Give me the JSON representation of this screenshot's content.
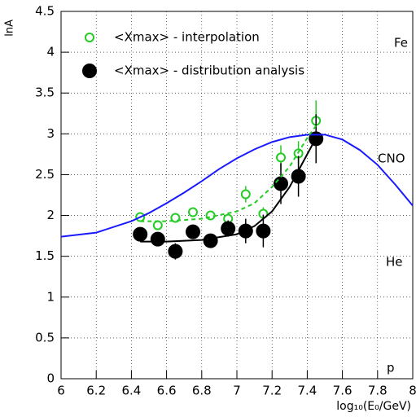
{
  "chart_data": {
    "type": "scatter",
    "x_label": "log₁₀(E₀/GeV)",
    "y_label": "lnA",
    "annotations": [
      "Fe",
      "CNO",
      "He",
      "p"
    ],
    "xlim": [
      6,
      8
    ],
    "xticks": [
      6,
      6.2,
      6.4,
      6.6,
      6.8,
      7,
      7.2,
      7.4,
      7.6,
      7.8,
      8
    ],
    "ylim": [
      0,
      4.5
    ],
    "yticks": [
      0,
      0.5,
      1,
      1.5,
      2,
      2.5,
      3,
      3.5,
      4,
      4.5
    ],
    "grid": true,
    "series": [
      {
        "name": "<Xmax> - interpolation",
        "color": "#22cc22",
        "marker": "open",
        "x": [
          6.45,
          6.55,
          6.65,
          6.75,
          6.85,
          6.95,
          7.05,
          7.15,
          7.25,
          7.35,
          7.45
        ],
        "values": [
          1.98,
          1.88,
          1.97,
          2.04,
          2.0,
          1.96,
          2.26,
          2.02,
          2.71,
          2.76,
          3.16
        ],
        "errors": [
          0.05,
          0.05,
          0.06,
          0.05,
          0.05,
          0.05,
          0.1,
          0.08,
          0.15,
          0.15,
          0.25
        ]
      },
      {
        "name": "<Xmax> - distribution analysis",
        "color": "#000000",
        "marker": "filled",
        "x": [
          6.45,
          6.55,
          6.65,
          6.75,
          6.85,
          6.95,
          7.05,
          7.15,
          7.25,
          7.35,
          7.45
        ],
        "values": [
          1.77,
          1.71,
          1.56,
          1.8,
          1.69,
          1.84,
          1.81,
          1.81,
          2.39,
          2.48,
          2.94
        ],
        "errors": [
          0.05,
          0.05,
          0.1,
          0.05,
          0.08,
          0.1,
          0.15,
          0.2,
          0.25,
          0.25,
          0.3
        ]
      },
      {
        "color": "#1a1aff",
        "marker": "none",
        "x": [
          6,
          6.2,
          6.4,
          6.5,
          6.6,
          6.7,
          6.8,
          6.9,
          7,
          7.1,
          7.2,
          7.3,
          7.4,
          7.5,
          7.6,
          7.7,
          7.8,
          7.9,
          8
        ],
        "values": [
          1.74,
          1.79,
          1.93,
          2.03,
          2.15,
          2.28,
          2.42,
          2.57,
          2.7,
          2.81,
          2.9,
          2.96,
          2.99,
          2.99,
          2.93,
          2.8,
          2.62,
          2.38,
          2.12
        ]
      },
      {
        "color": "#22cc22",
        "marker": "none",
        "dashed": true,
        "x": [
          6.45,
          6.6,
          6.8,
          7.0,
          7.1,
          7.2,
          7.3,
          7.4,
          7.45
        ],
        "values": [
          1.93,
          1.93,
          1.96,
          2.05,
          2.15,
          2.35,
          2.6,
          2.95,
          3.1
        ]
      },
      {
        "color": "#000000",
        "marker": "none",
        "x": [
          6.45,
          6.6,
          6.8,
          7.0,
          7.1,
          7.2,
          7.3,
          7.4,
          7.45
        ],
        "values": [
          1.68,
          1.68,
          1.7,
          1.77,
          1.87,
          2.05,
          2.35,
          2.75,
          2.95
        ]
      }
    ]
  }
}
